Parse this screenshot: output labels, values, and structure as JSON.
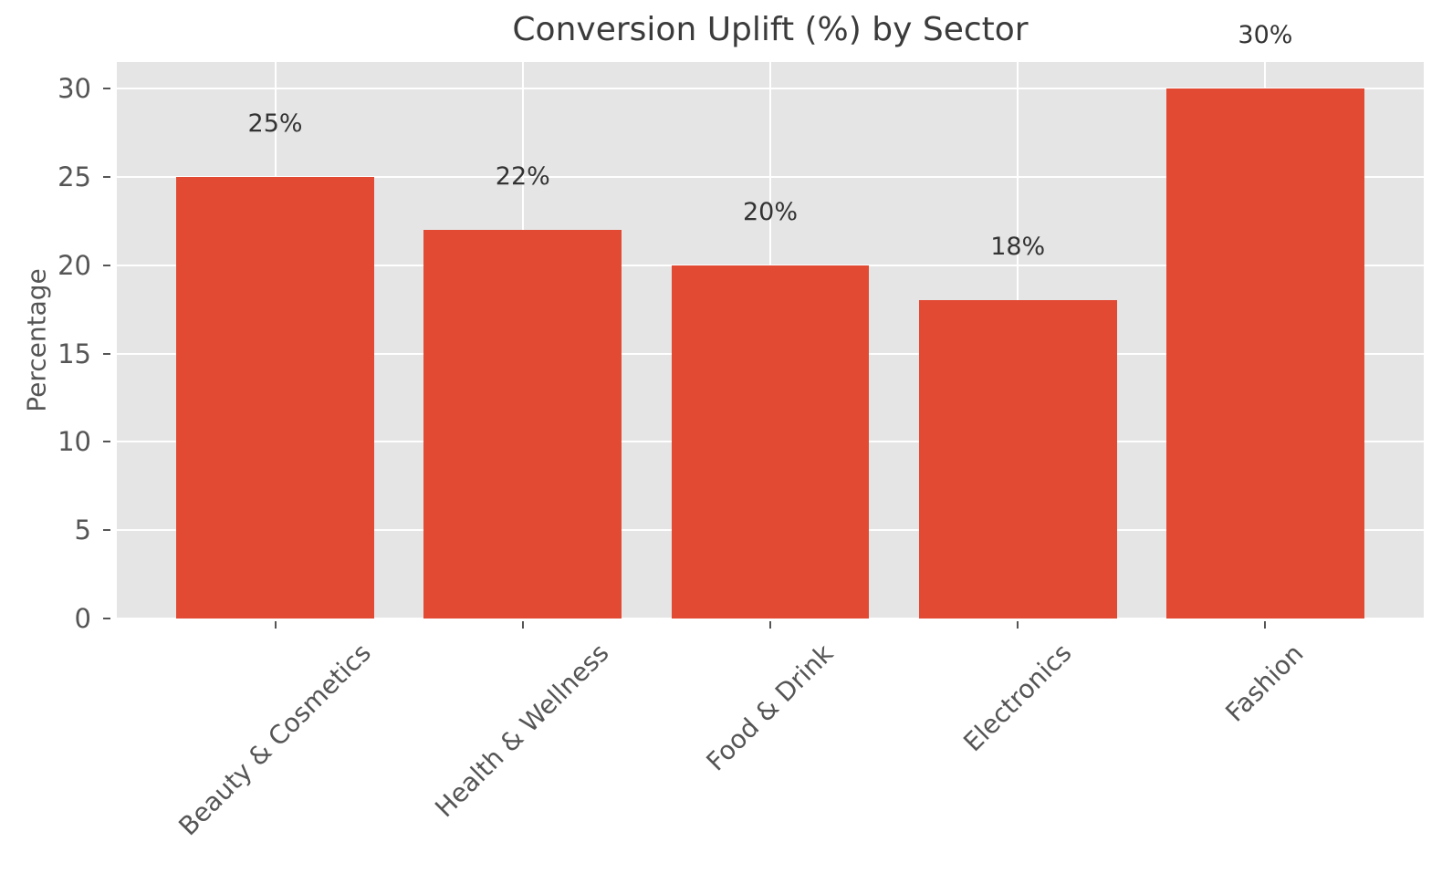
{
  "chart_data": {
    "type": "bar",
    "title": "Conversion Uplift (%) by Sector",
    "xlabel": "",
    "ylabel": "Percentage",
    "categories": [
      "Beauty & Cosmetics",
      "Health & Wellness",
      "Food & Drink",
      "Electronics",
      "Fashion"
    ],
    "values": [
      25,
      22,
      20,
      18,
      30
    ],
    "bar_labels": [
      "25%",
      "22%",
      "20%",
      "18%",
      "30%"
    ],
    "yticks": [
      0,
      5,
      10,
      15,
      20,
      25,
      30
    ],
    "ylim": [
      0,
      31.5
    ],
    "grid": true,
    "legend": "none",
    "style": {
      "bar_color": "#e24a33",
      "plot_bg": "#e5e5e5",
      "grid_color": "#ffffff",
      "tick_color": "#555555",
      "title_color": "#3b3b3b",
      "value_label_color": "#333333"
    }
  }
}
